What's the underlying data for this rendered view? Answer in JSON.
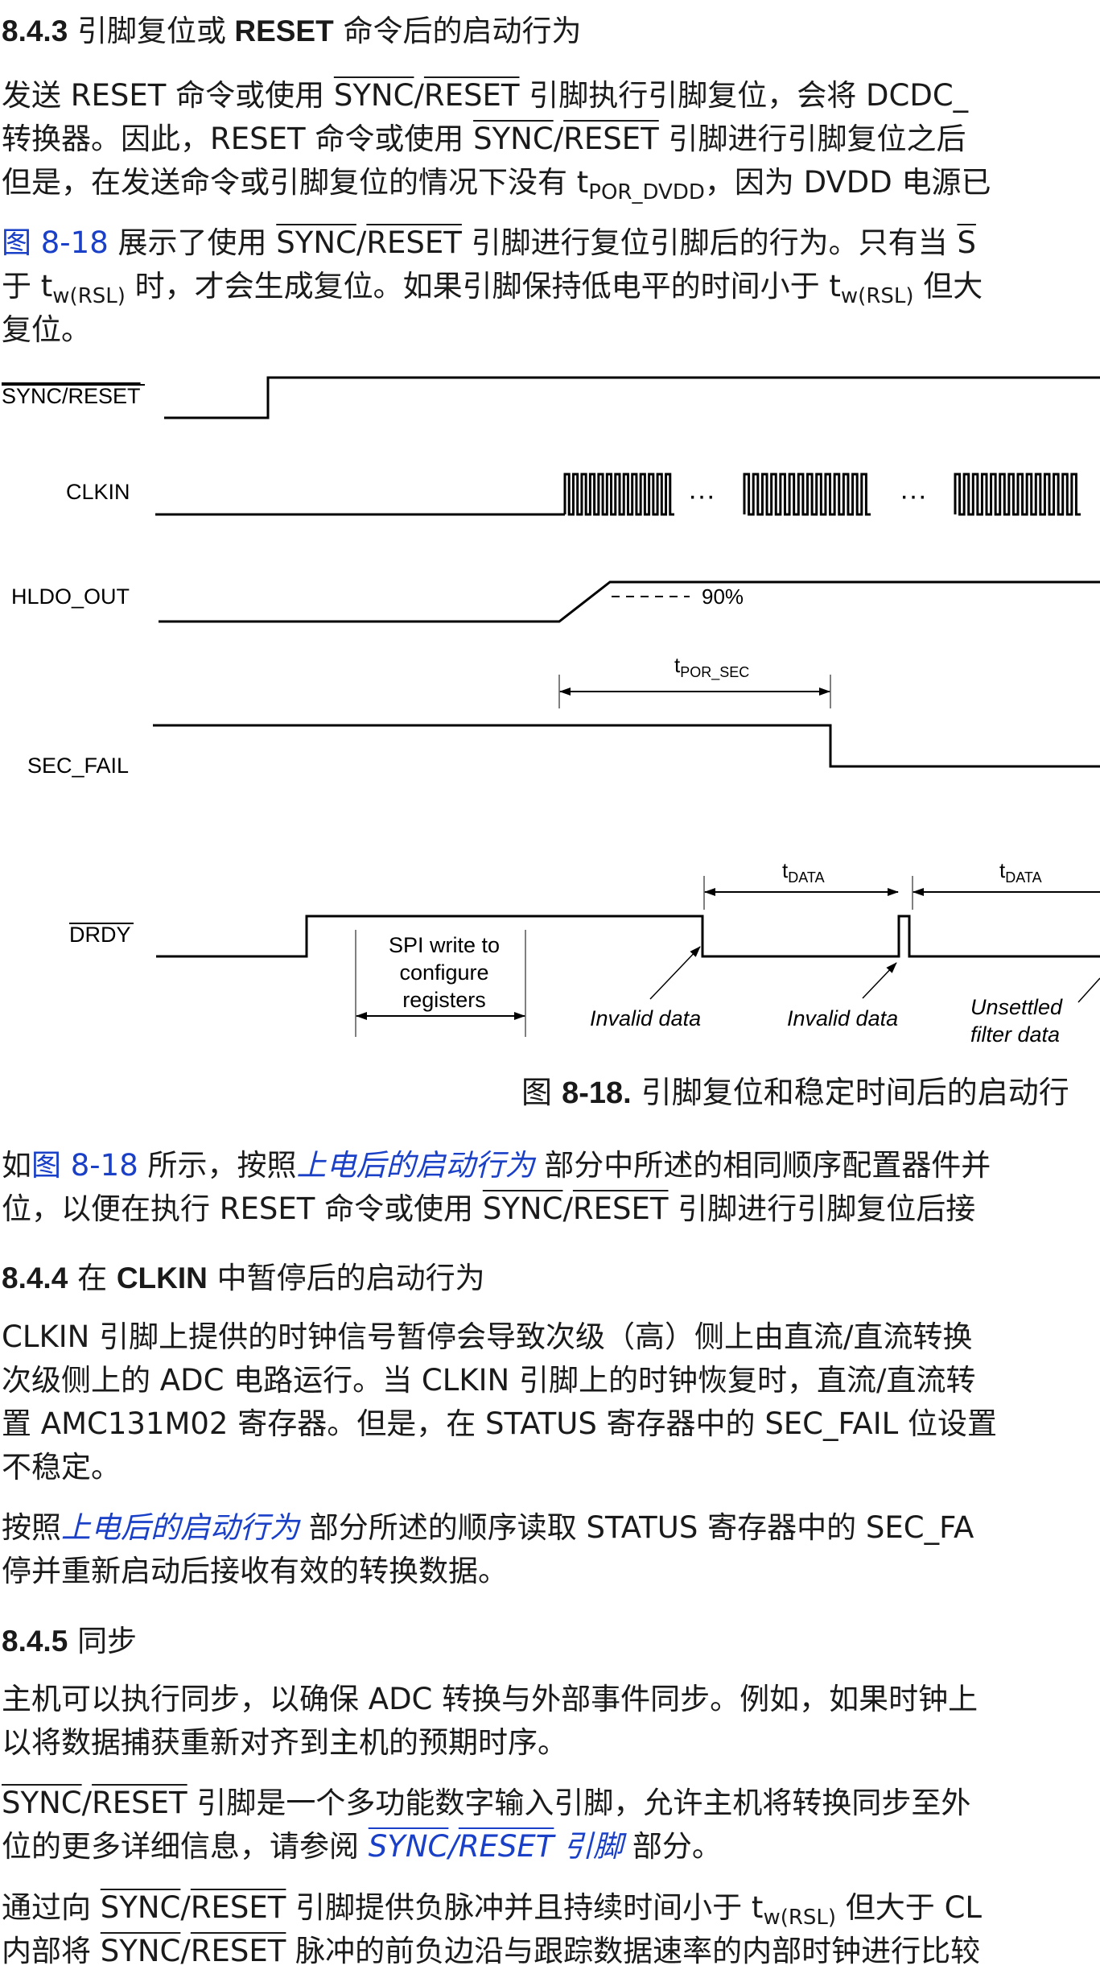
{
  "s843": {
    "num": "8.4.3",
    "title_a": "引脚复位或",
    "title_b": "RESET",
    "title_c": "命令后的启动行为",
    "p1": {
      "l1_a": "发送 RESET 命令或使用 ",
      "l1_b": "SYNC",
      "l1_c": "/",
      "l1_d": "RESET",
      "l1_e": " 引脚执行引脚复位，会将 DCDC_",
      "l2_a": "转换器。因此，RESET 命令或使用 ",
      "l2_b": "SYNC",
      "l2_c": "/",
      "l2_d": "RESET",
      "l2_e": " 引脚进行引脚复位之后",
      "l3_a": "但是，在发送命令或引脚复位的情况下没有 t",
      "l3_sub": "POR_DVDD",
      "l3_b": "，因为 DVDD 电源已"
    },
    "p2": {
      "l1_link": "图 8-18",
      "l1_a": " 展示了使用 ",
      "l1_b": "SYNC",
      "l1_c": "/",
      "l1_d": "RESET",
      "l1_e": " 引脚进行复位引脚后的行为。只有当 ",
      "l1_f": "S",
      "l2_a": "于 t",
      "l2_sub1": "w(RSL)",
      "l2_b": " 时，才会生成复位。如果引脚保持低电平的时间小于 t",
      "l2_sub2": "w(RSL)",
      "l2_c": " 但大",
      "l3": "复位。"
    }
  },
  "timing": {
    "signals": [
      "SYNC/RESET",
      "CLKIN",
      "HLDO_OUT",
      "SEC_FAIL",
      "DRDY"
    ],
    "ellipsis": "···",
    "pct90": "90%",
    "t_por_sec_main": "t",
    "t_por_sec_sub": "POR_SEC",
    "t_data_main": "t",
    "t_data_sub": "DATA",
    "spi_note": [
      "SPI write to",
      "configure",
      "registers"
    ],
    "invalid_data": "Invalid data",
    "unsettled": [
      "Unsettled",
      "filter data"
    ]
  },
  "caption": {
    "prefix": "图 ",
    "num": "8-18.",
    "text": " 引脚复位和稳定时间后的启动行"
  },
  "p3": {
    "l1_a": "如",
    "l1_link": "图 8-18",
    "l1_b": " 所示，按照",
    "l1_ilink": "上电后的启动行为",
    "l1_c": " 部分中所述的相同顺序配置器件并",
    "l2_a": "位，以便在执行 RESET 命令或使用 ",
    "l2_b": "SYNC",
    "l2_c": "/",
    "l2_d": "RESET",
    "l2_e": " 引脚进行引脚复位后接"
  },
  "s844": {
    "num": "8.4.4",
    "title_a": "在",
    "title_b": "CLKIN",
    "title_c": "中暂停后的启动行为",
    "p1": [
      "CLKIN 引脚上提供的时钟信号暂停会导致次级（高）侧上由直流/直流转换",
      "次级侧上的 ADC 电路运行。当 CLKIN 引脚上的时钟恢复时，直流/直流转",
      "置 AMC131M02 寄存器。但是，在 STATUS 寄存器中的 SEC_FAIL 位设置",
      "不稳定。"
    ],
    "p2": {
      "l1_a": "按照",
      "l1_ilink": "上电后的启动行为",
      "l1_b": " 部分所述的顺序读取 STATUS 寄存器中的 SEC_FA",
      "l2": "停并重新启动后接收有效的转换数据。"
    }
  },
  "s845": {
    "num": "8.4.5",
    "title": "同步",
    "p1": [
      "主机可以执行同步，以确保 ADC 转换与外部事件同步。例如，如果时钟上",
      "以将数据捕获重新对齐到主机的预期时序。"
    ],
    "p2": {
      "l1_a": "SYNC",
      "l1_b": "/",
      "l1_c": "RESET",
      "l1_d": " 引脚是一个多功能数字输入引脚，允许主机将转换同步至外",
      "l2_a": "位的更多详细信息，请参阅 ",
      "l2_link_a": "SYNC",
      "l2_link_b": "/",
      "l2_link_c": "RESET",
      "l2_link_d": " 引脚",
      "l2_b": " 部分。"
    },
    "p3": {
      "l1_a": "通过向 ",
      "l1_b": "SYNC",
      "l1_c": "/",
      "l1_d": "RESET",
      "l1_e": " 引脚提供负脉冲并且持续时间小于 t",
      "l1_sub": "w(RSL)",
      "l1_f": " 但大于 CL",
      "l2_a": "内部将 ",
      "l2_b": "SYNC",
      "l2_c": "/",
      "l2_d": "RESET",
      "l2_e": " 脉冲的前负边沿与跟踪数据速率的内部时钟进行比较"
    }
  }
}
